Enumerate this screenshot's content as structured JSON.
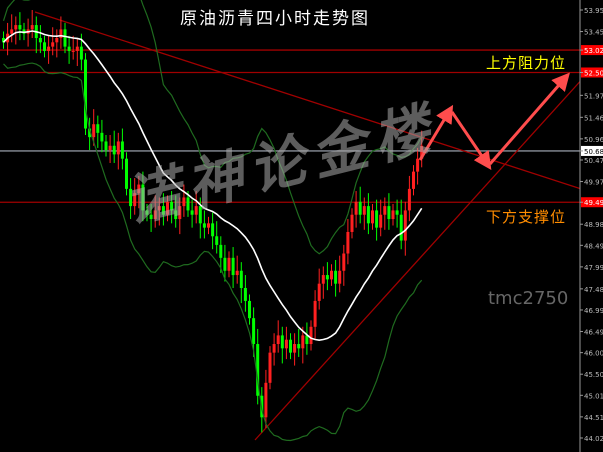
{
  "title": "原油沥青四小时走势图",
  "labels": {
    "resistance": "上方阻力位",
    "support": "下方支撑位"
  },
  "watermark": {
    "id": "tmc2750",
    "brand": "诺神论金楼"
  },
  "colors": {
    "up": "#ff2020",
    "down": "#00ff00",
    "ma": "#ffffff",
    "bands": "#1f6b1f",
    "levels": "#a00000",
    "current": "#8a8f9a",
    "arrow": "#ff4d4d"
  },
  "chart_data": {
    "type": "candlestick",
    "title": "原油沥青四小时走势图",
    "ylim": [
      44.0,
      54.2
    ],
    "y_ticks": [
      "53.95",
      "53.45",
      "53.02",
      "52.50",
      "51.97",
      "51.46",
      "50.96",
      "50.68",
      "50.47",
      "49.97",
      "49.49",
      "48.98",
      "48.49",
      "47.99",
      "47.48",
      "46.99",
      "46.49",
      "46.00",
      "45.50",
      "45.01",
      "44.51",
      "44.02"
    ],
    "highlighted_levels": [
      {
        "value": "53.02",
        "color": "red"
      },
      {
        "value": "52.50",
        "color": "red"
      },
      {
        "value": "50.68",
        "color": "white",
        "current": true
      },
      {
        "value": "49.49",
        "color": "red"
      }
    ],
    "closes": [
      53.2,
      53.4,
      53.5,
      53.6,
      53.5,
      53.4,
      53.5,
      53.6,
      53.3,
      53.2,
      53.0,
      53.1,
      53.2,
      53.3,
      53.5,
      53.1,
      53.0,
      53.0,
      53.1,
      52.8,
      51.2,
      51.0,
      51.3,
      51.1,
      50.9,
      50.7,
      50.8,
      50.6,
      50.9,
      50.5,
      49.8,
      49.4,
      49.7,
      49.9,
      49.3,
      49.2,
      49.1,
      49.3,
      49.4,
      49.2,
      49.5,
      49.3,
      49.1,
      49.4,
      49.6,
      49.3,
      49.2,
      49.4,
      49.0,
      48.9,
      49.0,
      48.7,
      48.5,
      48.2,
      47.9,
      48.2,
      47.8,
      47.9,
      47.5,
      47.2,
      46.8,
      46.2,
      45.0,
      44.5,
      45.3,
      46.0,
      46.2,
      46.4,
      46.1,
      46.3,
      46.0,
      46.2,
      46.1,
      46.4,
      46.2,
      46.6,
      47.2,
      47.6,
      47.8,
      47.7,
      47.9,
      47.6,
      47.9,
      48.3,
      48.8,
      49.2,
      49.5,
      49.2,
      49.4,
      49.0,
      49.3,
      48.9,
      49.2,
      49.4,
      49.1,
      49.3,
      49.2,
      48.6,
      49.3,
      49.8,
      50.2,
      50.5,
      50.8
    ],
    "indicators": [
      "moving average (white)",
      "Bollinger bands (green)"
    ],
    "trendlines": [
      "descending resistance",
      "ascending support"
    ],
    "projection": "up to resistance, pullback to trendline, then rally above 53.02"
  }
}
